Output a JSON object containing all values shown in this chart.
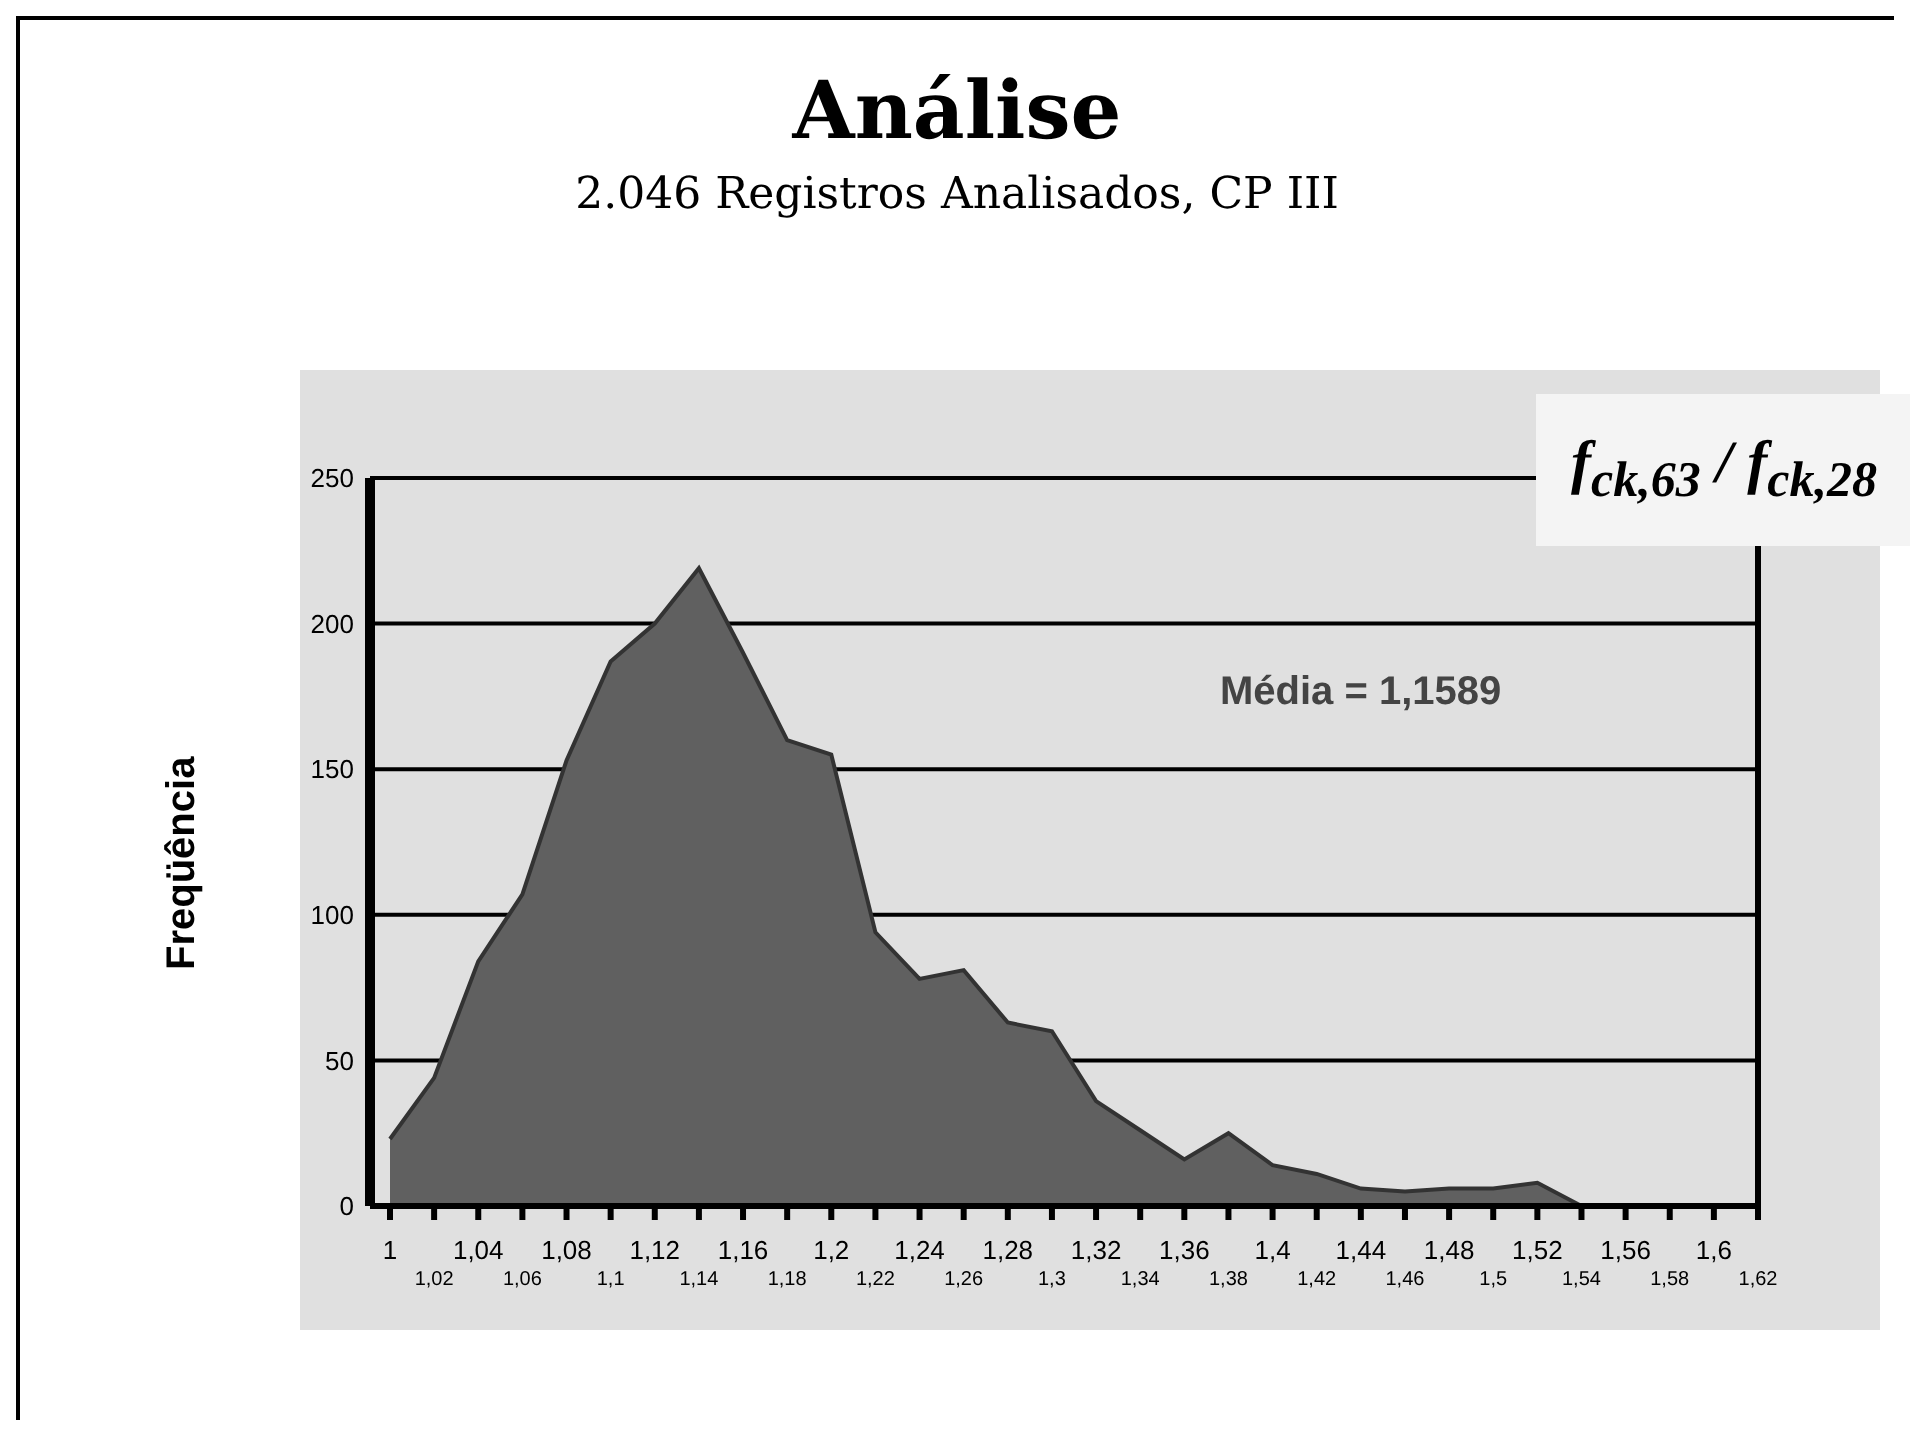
{
  "chart_data": {
    "type": "area",
    "title": "Análise",
    "subtitle": "2.046 Registros Analisados, CP III",
    "ylabel": "Freqüência",
    "categories": [
      "1",
      "1,02",
      "1,04",
      "1,06",
      "1,08",
      "1,1",
      "1,12",
      "1,14",
      "1,16",
      "1,18",
      "1,2",
      "1,22",
      "1,24",
      "1,26",
      "1,28",
      "1,3",
      "1,32",
      "1,34",
      "1,36",
      "1,38",
      "1,4",
      "1,42",
      "1,44",
      "1,46",
      "1,48",
      "1,5",
      "1,52",
      "1,54",
      "1,56",
      "1,58",
      "1,6",
      "1,62"
    ],
    "values": [
      23,
      44,
      84,
      107,
      153,
      187,
      200,
      219,
      190,
      160,
      155,
      94,
      78,
      81,
      63,
      60,
      36,
      26,
      16,
      25,
      14,
      11,
      6,
      5,
      6,
      6,
      8,
      0,
      null,
      null,
      null,
      null
    ],
    "color": "#606060",
    "ylim": [
      0,
      250
    ],
    "yticks": [
      0,
      50,
      100,
      150,
      200,
      250
    ],
    "grid": "y",
    "annotations": [
      "Média = 1,1589",
      "f$_{ck,63}$ / f$_{ck,28}$"
    ]
  }
}
